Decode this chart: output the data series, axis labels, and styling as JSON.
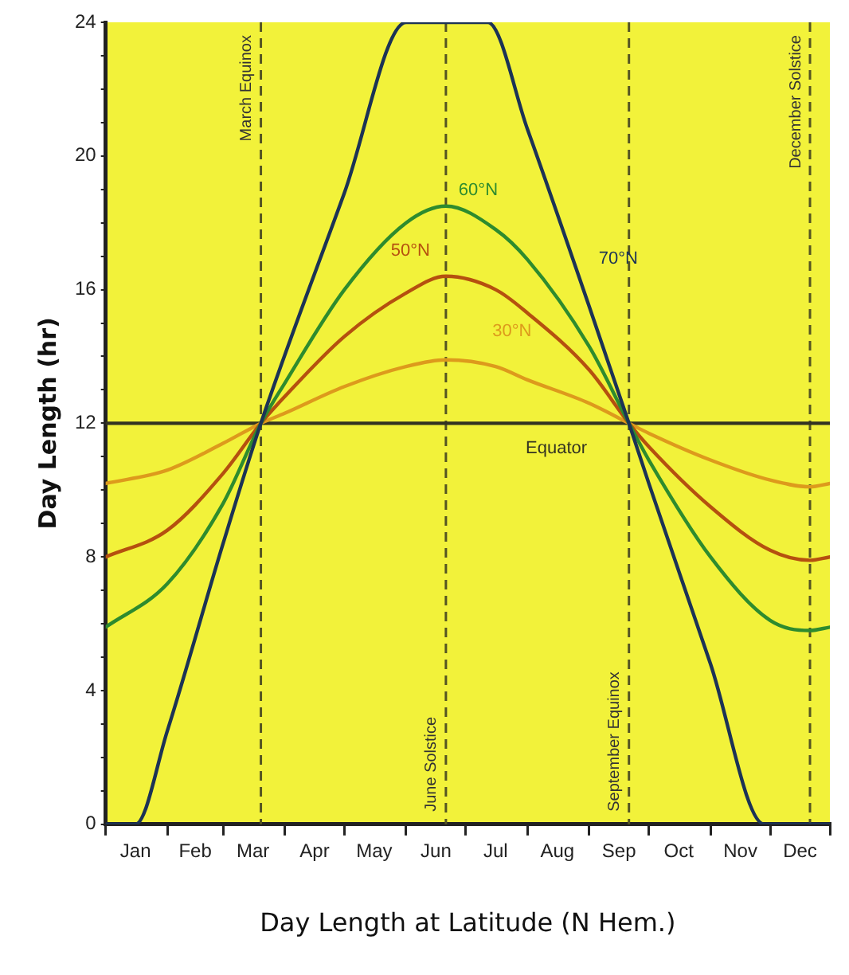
{
  "chart_data": {
    "type": "line",
    "xlabel": "Day Length at Latitude (N Hem.)",
    "ylabel": "Day Length (hr)",
    "xlim": [
      "--01-01",
      "--12-31"
    ],
    "ylim": [
      0,
      24
    ],
    "xticks": [
      {
        "value": "--01-01",
        "label": null
      },
      {
        "value": "--01-16",
        "label": "Jan"
      },
      {
        "value": "--02-01",
        "label": null
      },
      {
        "value": "--02-15",
        "label": "Feb"
      },
      {
        "value": "--03-01",
        "label": null
      },
      {
        "value": "--03-16",
        "label": "Mar"
      },
      {
        "value": "--04-01",
        "label": null
      },
      {
        "value": "--04-16",
        "label": "Apr"
      },
      {
        "value": "--05-01",
        "label": null
      },
      {
        "value": "--05-16",
        "label": "May"
      },
      {
        "value": "--06-01",
        "label": null
      },
      {
        "value": "--06-16",
        "label": "Jun"
      },
      {
        "value": "--07-01",
        "label": null
      },
      {
        "value": "--07-16",
        "label": "Jul"
      },
      {
        "value": "--08-01",
        "label": null
      },
      {
        "value": "--08-16",
        "label": "Aug"
      },
      {
        "value": "--09-01",
        "label": null
      },
      {
        "value": "--09-16",
        "label": "Sep"
      },
      {
        "value": "--10-01",
        "label": null
      },
      {
        "value": "--10-16",
        "label": "Oct"
      },
      {
        "value": "--11-01",
        "label": null
      },
      {
        "value": "--11-16",
        "label": "Nov"
      },
      {
        "value": "--12-01",
        "label": null
      },
      {
        "value": "--12-16",
        "label": "Dec"
      },
      {
        "value": "--12-31",
        "label": null
      }
    ],
    "yticks": [
      0,
      {
        "value": 1,
        "label": null
      },
      {
        "value": 2,
        "label": null
      },
      {
        "value": 3,
        "label": null
      },
      4,
      {
        "value": 5,
        "label": null
      },
      {
        "value": 6,
        "label": null
      },
      {
        "value": 7,
        "label": null
      },
      8,
      {
        "value": 9,
        "label": null
      },
      {
        "value": 10,
        "label": null
      },
      {
        "value": 11,
        "label": null
      },
      12,
      {
        "value": 13,
        "label": null
      },
      {
        "value": 14,
        "label": null
      },
      {
        "value": 15,
        "label": null
      },
      16,
      {
        "value": 17,
        "label": null
      },
      {
        "value": 18,
        "label": null
      },
      {
        "value": 19,
        "label": null
      },
      20,
      {
        "value": 21,
        "label": null
      },
      {
        "value": 22,
        "label": null
      },
      {
        "value": 23,
        "label": null
      },
      24
    ],
    "grid": false,
    "legend": false,
    "marker": "none",
    "line_style": "solid",
    "series": [
      {
        "name": "70°N",
        "color": "#1c3355",
        "x": [
          "--01-01",
          "--01-16",
          "--02-01",
          "--03-01",
          "--03-20",
          "--05-01",
          "--06-01",
          "--06-21",
          "--07-12",
          "--08-01",
          "--09-01",
          "--09-21",
          "--10-01",
          "--11-01",
          "--11-28",
          "--12-01",
          "--12-31"
        ],
        "values": [
          0,
          0,
          2.8,
          8.4,
          12,
          18.9,
          24,
          24,
          24,
          20.8,
          15.5,
          12,
          10.2,
          4.8,
          0,
          0,
          0
        ]
      },
      {
        "name": "60°N",
        "color": "#2e8b2e",
        "x": [
          "--01-01",
          "--02-01",
          "--03-01",
          "--03-20",
          "--04-01",
          "--05-01",
          "--06-01",
          "--06-21",
          "--07-16",
          "--08-01",
          "--09-01",
          "--09-21",
          "--10-01",
          "--11-01",
          "--12-01",
          "--12-21",
          "--12-31"
        ],
        "values": [
          5.9,
          7.2,
          9.6,
          12,
          13.2,
          16,
          18,
          18.5,
          17.8,
          16.9,
          14.3,
          12,
          10.9,
          8,
          6.1,
          5.8,
          5.9
        ]
      },
      {
        "name": "50°N",
        "color": "#b5500f",
        "x": [
          "--01-01",
          "--02-01",
          "--03-01",
          "--03-20",
          "--04-01",
          "--05-01",
          "--06-01",
          "--06-21",
          "--07-16",
          "--08-01",
          "--09-01",
          "--09-21",
          "--10-01",
          "--11-01",
          "--12-01",
          "--12-21",
          "--12-31"
        ],
        "values": [
          8,
          8.8,
          10.5,
          12,
          12.8,
          14.6,
          15.9,
          16.4,
          16,
          15.3,
          13.6,
          12,
          11.3,
          9.5,
          8.2,
          7.9,
          8
        ]
      },
      {
        "name": "30°N",
        "color": "#dd9a1c",
        "x": [
          "--01-01",
          "--02-01",
          "--03-01",
          "--03-20",
          "--04-01",
          "--05-01",
          "--06-01",
          "--06-21",
          "--07-16",
          "--08-01",
          "--09-01",
          "--09-21",
          "--10-01",
          "--11-01",
          "--12-01",
          "--12-21",
          "--12-31"
        ],
        "values": [
          10.2,
          10.6,
          11.4,
          12,
          12.3,
          13.1,
          13.7,
          13.9,
          13.7,
          13.3,
          12.6,
          12,
          11.7,
          10.9,
          10.3,
          10.1,
          10.2
        ]
      },
      {
        "name": "Equator",
        "color": "#333322",
        "x": [
          "--01-01",
          "--12-31"
        ],
        "values": [
          12,
          12
        ]
      }
    ],
    "ref_lines": [
      {
        "axis": "x",
        "value": "--03-20",
        "label": "March Equinox",
        "line_style": "dashed",
        "color": "#555522"
      },
      {
        "axis": "x",
        "value": "--06-21",
        "label": "June Solstice",
        "line_style": "dashed",
        "color": "#555522"
      },
      {
        "axis": "x",
        "value": "--09-21",
        "label": "September Equinox",
        "line_style": "dashed",
        "color": "#555522"
      },
      {
        "axis": "x",
        "value": "--12-21",
        "label": "December Solstice",
        "line_style": "dashed",
        "color": "#555522"
      }
    ]
  }
}
